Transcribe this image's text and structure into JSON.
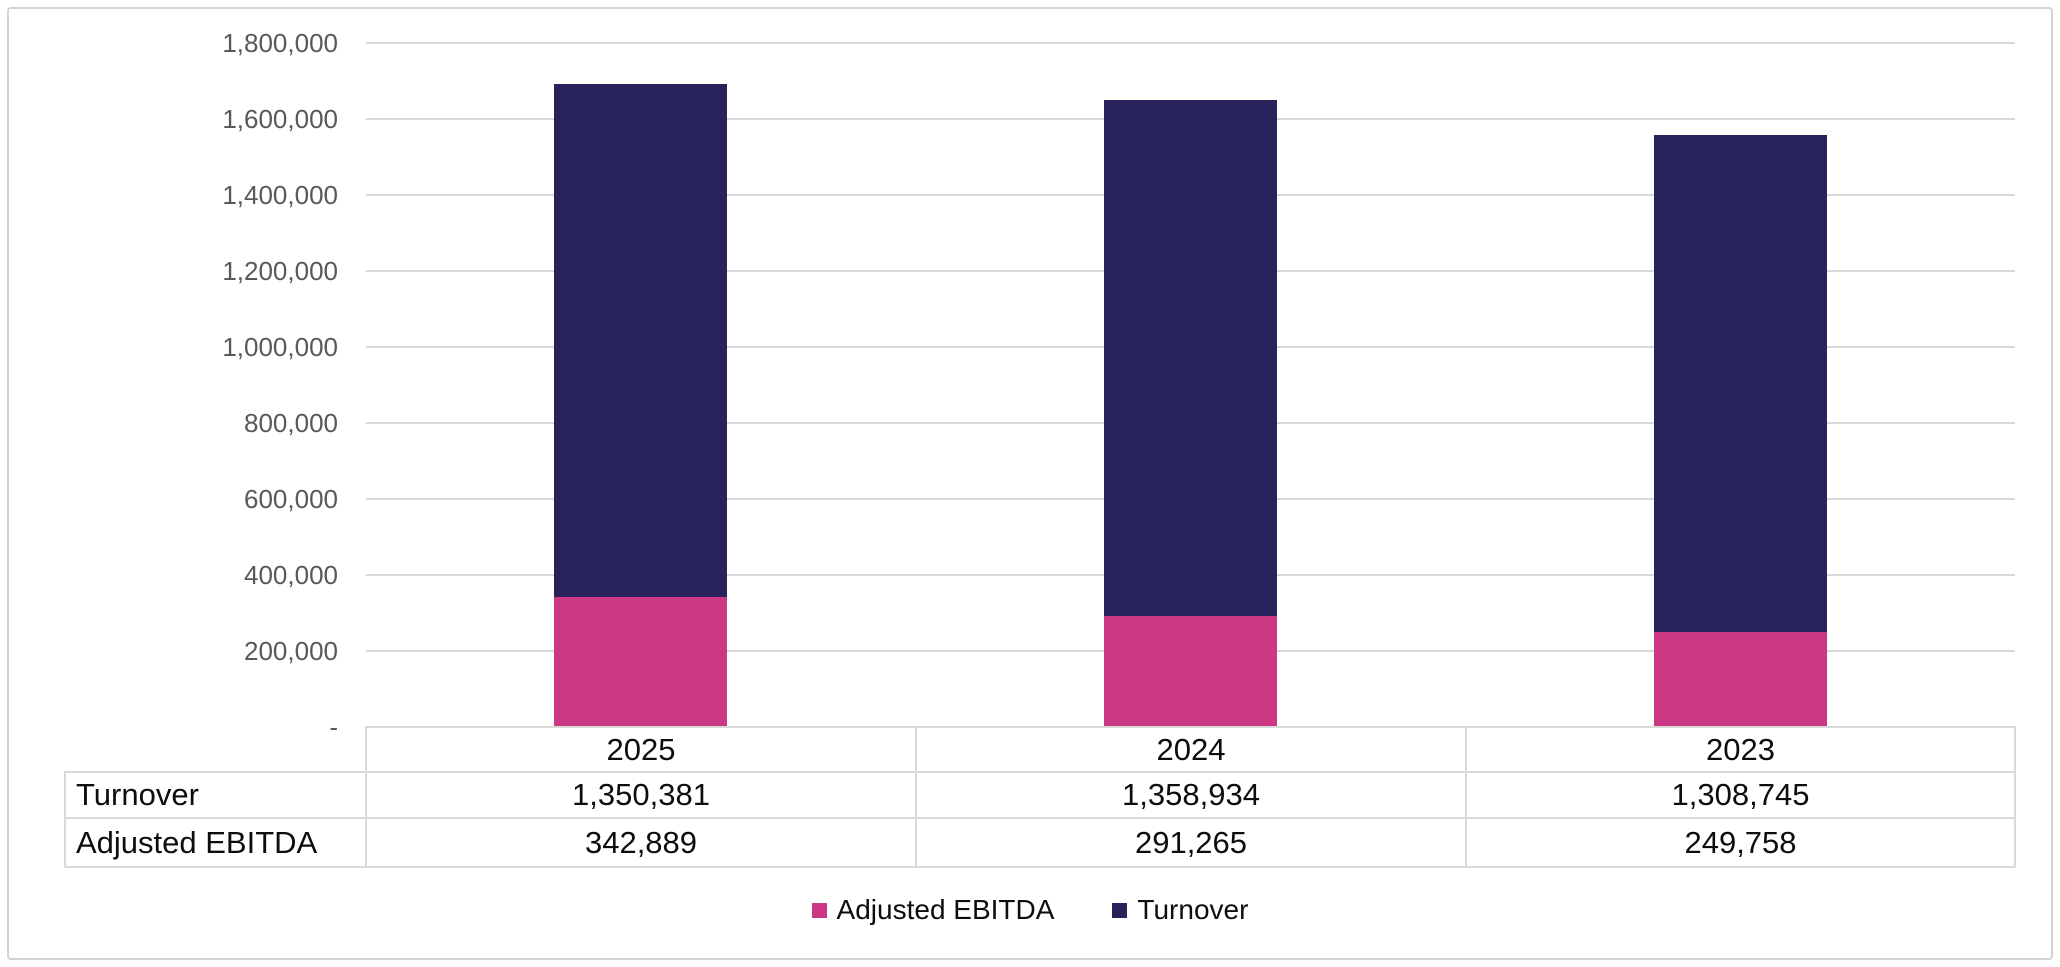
{
  "chart_data": {
    "type": "bar",
    "stacked": true,
    "title": "",
    "categories": [
      "2025",
      "2024",
      "2023"
    ],
    "series": [
      {
        "name": "Adjusted EBITDA",
        "color": "#CC3884",
        "values": [
          342889,
          291265,
          249758
        ],
        "labels": [
          "342,889",
          "291,265",
          "249,758"
        ]
      },
      {
        "name": "Turnover",
        "color": "#29235C",
        "values": [
          1350381,
          1358934,
          1308745
        ],
        "labels": [
          "1,350,381",
          "1,358,934",
          "1,308,745"
        ]
      }
    ],
    "y_axis": {
      "min": 0,
      "max": 1800000,
      "step": 200000,
      "tick_labels_top_to_bottom": [
        "1,800,000",
        "1,600,000",
        "1,400,000",
        "1,200,000",
        "1,000,000",
        "800,000",
        "600,000",
        "400,000",
        "200,000",
        "-"
      ]
    },
    "grid": true,
    "legend_position": "bottom",
    "data_table": {
      "header": [
        "2025",
        "2024",
        "2023"
      ],
      "rows": [
        {
          "label": "Turnover",
          "values": [
            "1,350,381",
            "1,358,934",
            "1,308,745"
          ]
        },
        {
          "label": "Adjusted EBITDA",
          "values": [
            "342,889",
            "291,265",
            "249,758"
          ]
        }
      ]
    }
  },
  "colors": {
    "adjusted_ebitda": "#CC3884",
    "turnover": "#29235C",
    "gridline": "#D9D9D9",
    "table_border": "#D9D9D9",
    "axis_text": "#595959",
    "text": "#0D0D0D",
    "frame_border": "#D3D3D3",
    "background": "#FFFFFF"
  }
}
